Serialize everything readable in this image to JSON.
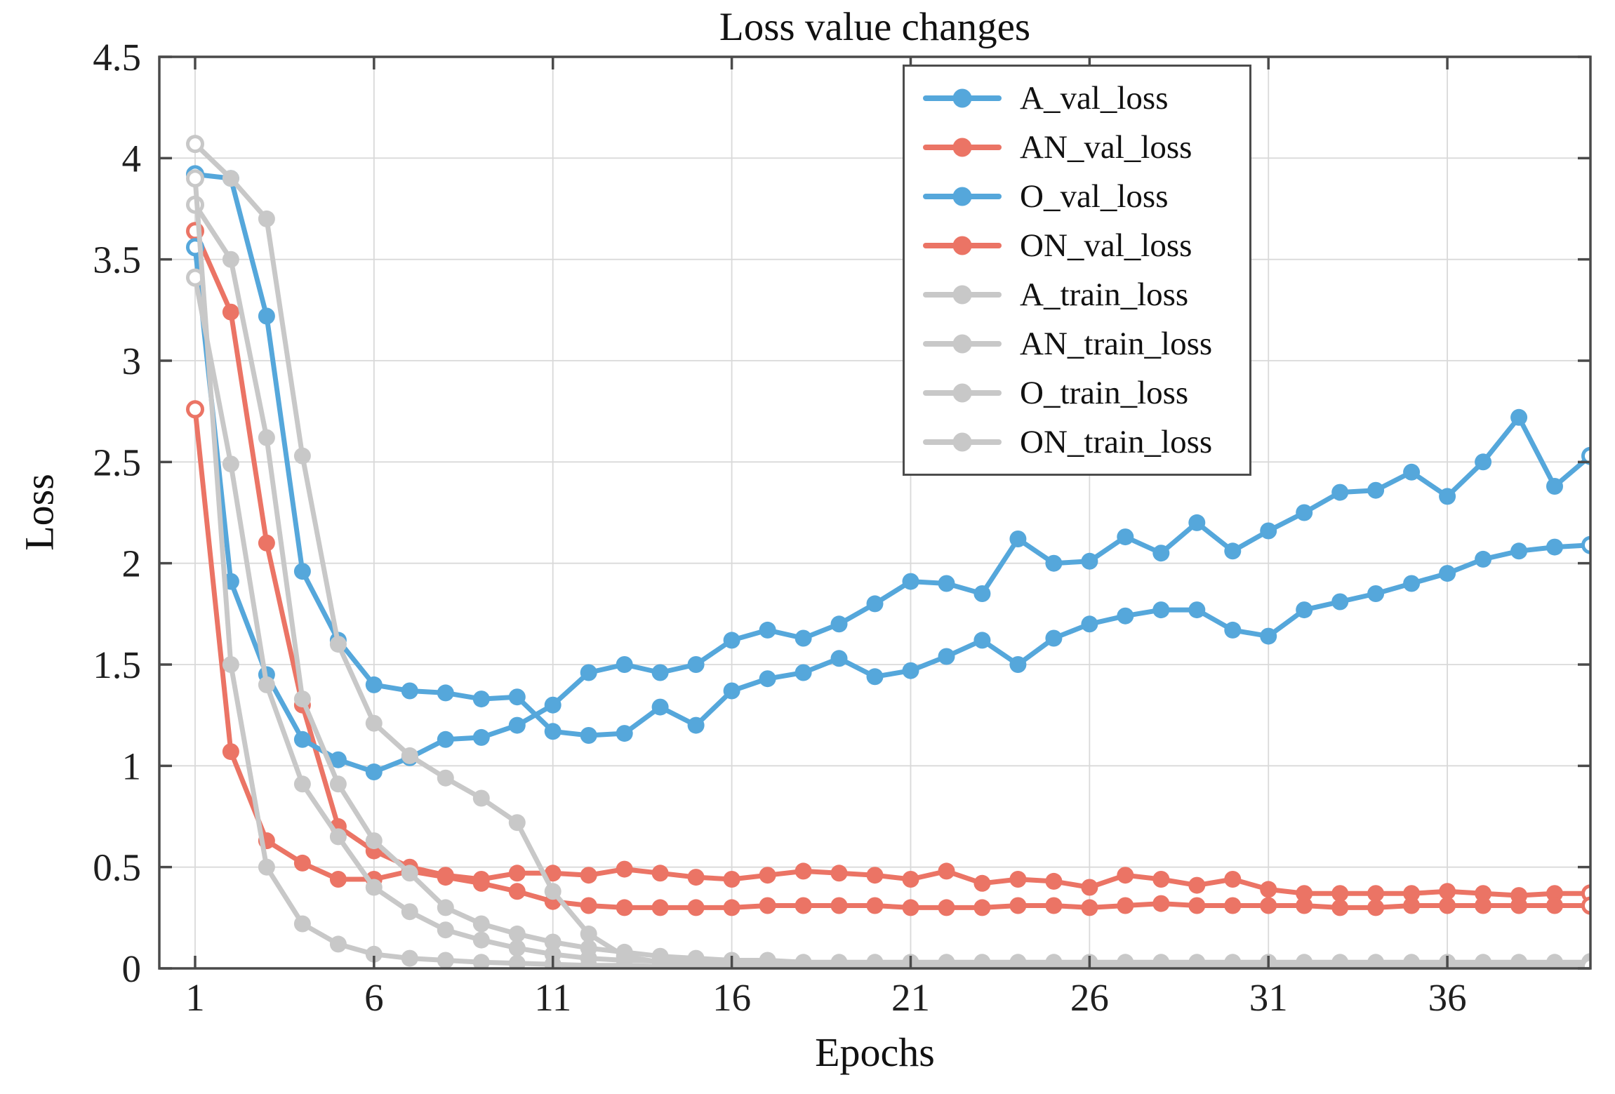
{
  "chart_data": {
    "type": "line",
    "title": "Loss value changes",
    "xlabel": "Epochs",
    "ylabel": "Loss",
    "xlim": [
      0,
      40
    ],
    "ylim": [
      0,
      4.5
    ],
    "x_ticks": [
      1,
      6,
      11,
      16,
      21,
      26,
      31,
      36
    ],
    "y_ticks": [
      0,
      0.5,
      1,
      1.5,
      2,
      2.5,
      3,
      3.5,
      4,
      4.5
    ],
    "y_tick_labels": [
      "0",
      "0.5",
      "1",
      "1.5",
      "2",
      "2.5",
      "3",
      "3.5",
      "4",
      "4.5"
    ],
    "grid": true,
    "legend_position": "upper right",
    "marker": "circle",
    "colors": {
      "blue": "#55a7db",
      "red": "#eb7465",
      "gray": "#c8c8c8",
      "grid": "#d9d9d9",
      "spine": "#4a4a4a",
      "tick_label": "#1f1f1f"
    },
    "series": [
      {
        "name": "A_val_loss",
        "color": "#55a7db",
        "values": [
          3.92,
          3.9,
          3.22,
          1.96,
          1.62,
          1.4,
          1.37,
          1.36,
          1.33,
          1.34,
          1.17,
          1.15,
          1.16,
          1.29,
          1.2,
          1.37,
          1.43,
          1.46,
          1.53,
          1.44,
          1.47,
          1.54,
          1.62,
          1.5,
          1.63,
          1.7,
          1.74,
          1.77,
          1.77,
          1.67,
          1.64,
          1.77,
          1.81,
          1.85,
          1.9,
          1.95,
          2.02,
          2.06,
          2.08,
          2.09
        ]
      },
      {
        "name": "AN_val_loss",
        "color": "#eb7465",
        "values": [
          3.64,
          3.24,
          2.1,
          1.3,
          0.7,
          0.58,
          0.5,
          0.46,
          0.44,
          0.47,
          0.47,
          0.46,
          0.49,
          0.47,
          0.45,
          0.44,
          0.46,
          0.48,
          0.47,
          0.46,
          0.44,
          0.48,
          0.42,
          0.44,
          0.43,
          0.4,
          0.46,
          0.44,
          0.41,
          0.44,
          0.39,
          0.37,
          0.37,
          0.37,
          0.37,
          0.38,
          0.37,
          0.36,
          0.37,
          0.37
        ]
      },
      {
        "name": "O_val_loss",
        "color": "#55a7db",
        "values": [
          3.56,
          1.91,
          1.45,
          1.13,
          1.03,
          0.97,
          1.04,
          1.13,
          1.14,
          1.2,
          1.3,
          1.46,
          1.5,
          1.46,
          1.5,
          1.62,
          1.67,
          1.63,
          1.7,
          1.8,
          1.91,
          1.9,
          1.85,
          2.12,
          2.0,
          2.01,
          2.13,
          2.05,
          2.2,
          2.06,
          2.16,
          2.25,
          2.35,
          2.36,
          2.45,
          2.33,
          2.5,
          2.72,
          2.38,
          2.53
        ]
      },
      {
        "name": "ON_val_loss",
        "color": "#eb7465",
        "values": [
          2.76,
          1.07,
          0.63,
          0.52,
          0.44,
          0.44,
          0.48,
          0.45,
          0.42,
          0.38,
          0.33,
          0.31,
          0.3,
          0.3,
          0.3,
          0.3,
          0.31,
          0.31,
          0.31,
          0.31,
          0.3,
          0.3,
          0.3,
          0.31,
          0.31,
          0.3,
          0.31,
          0.32,
          0.31,
          0.31,
          0.31,
          0.31,
          0.3,
          0.3,
          0.31,
          0.31,
          0.31,
          0.31,
          0.31,
          0.31
        ]
      },
      {
        "name": "A_train_loss",
        "color": "#c8c8c8",
        "values": [
          4.07,
          3.9,
          3.7,
          2.53,
          1.6,
          1.21,
          1.05,
          0.94,
          0.84,
          0.72,
          0.38,
          0.17,
          0.06,
          0.03,
          0.025,
          0.02,
          0.02,
          0.02,
          0.02,
          0.02,
          0.02,
          0.02,
          0.02,
          0.02,
          0.02,
          0.02,
          0.02,
          0.02,
          0.02,
          0.02,
          0.02,
          0.02,
          0.02,
          0.02,
          0.02,
          0.02,
          0.02,
          0.02,
          0.02,
          0.02
        ]
      },
      {
        "name": "AN_train_loss",
        "color": "#c8c8c8",
        "values": [
          3.77,
          3.5,
          2.62,
          1.33,
          0.91,
          0.63,
          0.47,
          0.3,
          0.22,
          0.17,
          0.13,
          0.1,
          0.08,
          0.06,
          0.05,
          0.04,
          0.04,
          0.03,
          0.03,
          0.03,
          0.03,
          0.03,
          0.03,
          0.03,
          0.03,
          0.03,
          0.03,
          0.03,
          0.03,
          0.03,
          0.03,
          0.03,
          0.03,
          0.03,
          0.03,
          0.03,
          0.03,
          0.03,
          0.03,
          0.03
        ]
      },
      {
        "name": "O_train_loss",
        "color": "#c8c8c8",
        "values": [
          3.41,
          2.49,
          1.4,
          0.91,
          0.65,
          0.4,
          0.28,
          0.19,
          0.14,
          0.1,
          0.07,
          0.05,
          0.04,
          0.035,
          0.03,
          0.025,
          0.02,
          0.02,
          0.02,
          0.02,
          0.02,
          0.02,
          0.02,
          0.02,
          0.02,
          0.02,
          0.02,
          0.02,
          0.02,
          0.02,
          0.02,
          0.02,
          0.02,
          0.02,
          0.02,
          0.02,
          0.02,
          0.02,
          0.02,
          0.02
        ]
      },
      {
        "name": "ON_train_loss",
        "color": "#c8c8c8",
        "values": [
          3.9,
          1.5,
          0.5,
          0.22,
          0.12,
          0.07,
          0.05,
          0.04,
          0.03,
          0.025,
          0.02,
          0.015,
          0.015,
          0.01,
          0.01,
          0.01,
          0.01,
          0.01,
          0.01,
          0.01,
          0.01,
          0.01,
          0.01,
          0.01,
          0.01,
          0.01,
          0.01,
          0.01,
          0.01,
          0.01,
          0.01,
          0.01,
          0.01,
          0.01,
          0.01,
          0.01,
          0.01,
          0.01,
          0.01,
          0.01
        ]
      }
    ]
  }
}
